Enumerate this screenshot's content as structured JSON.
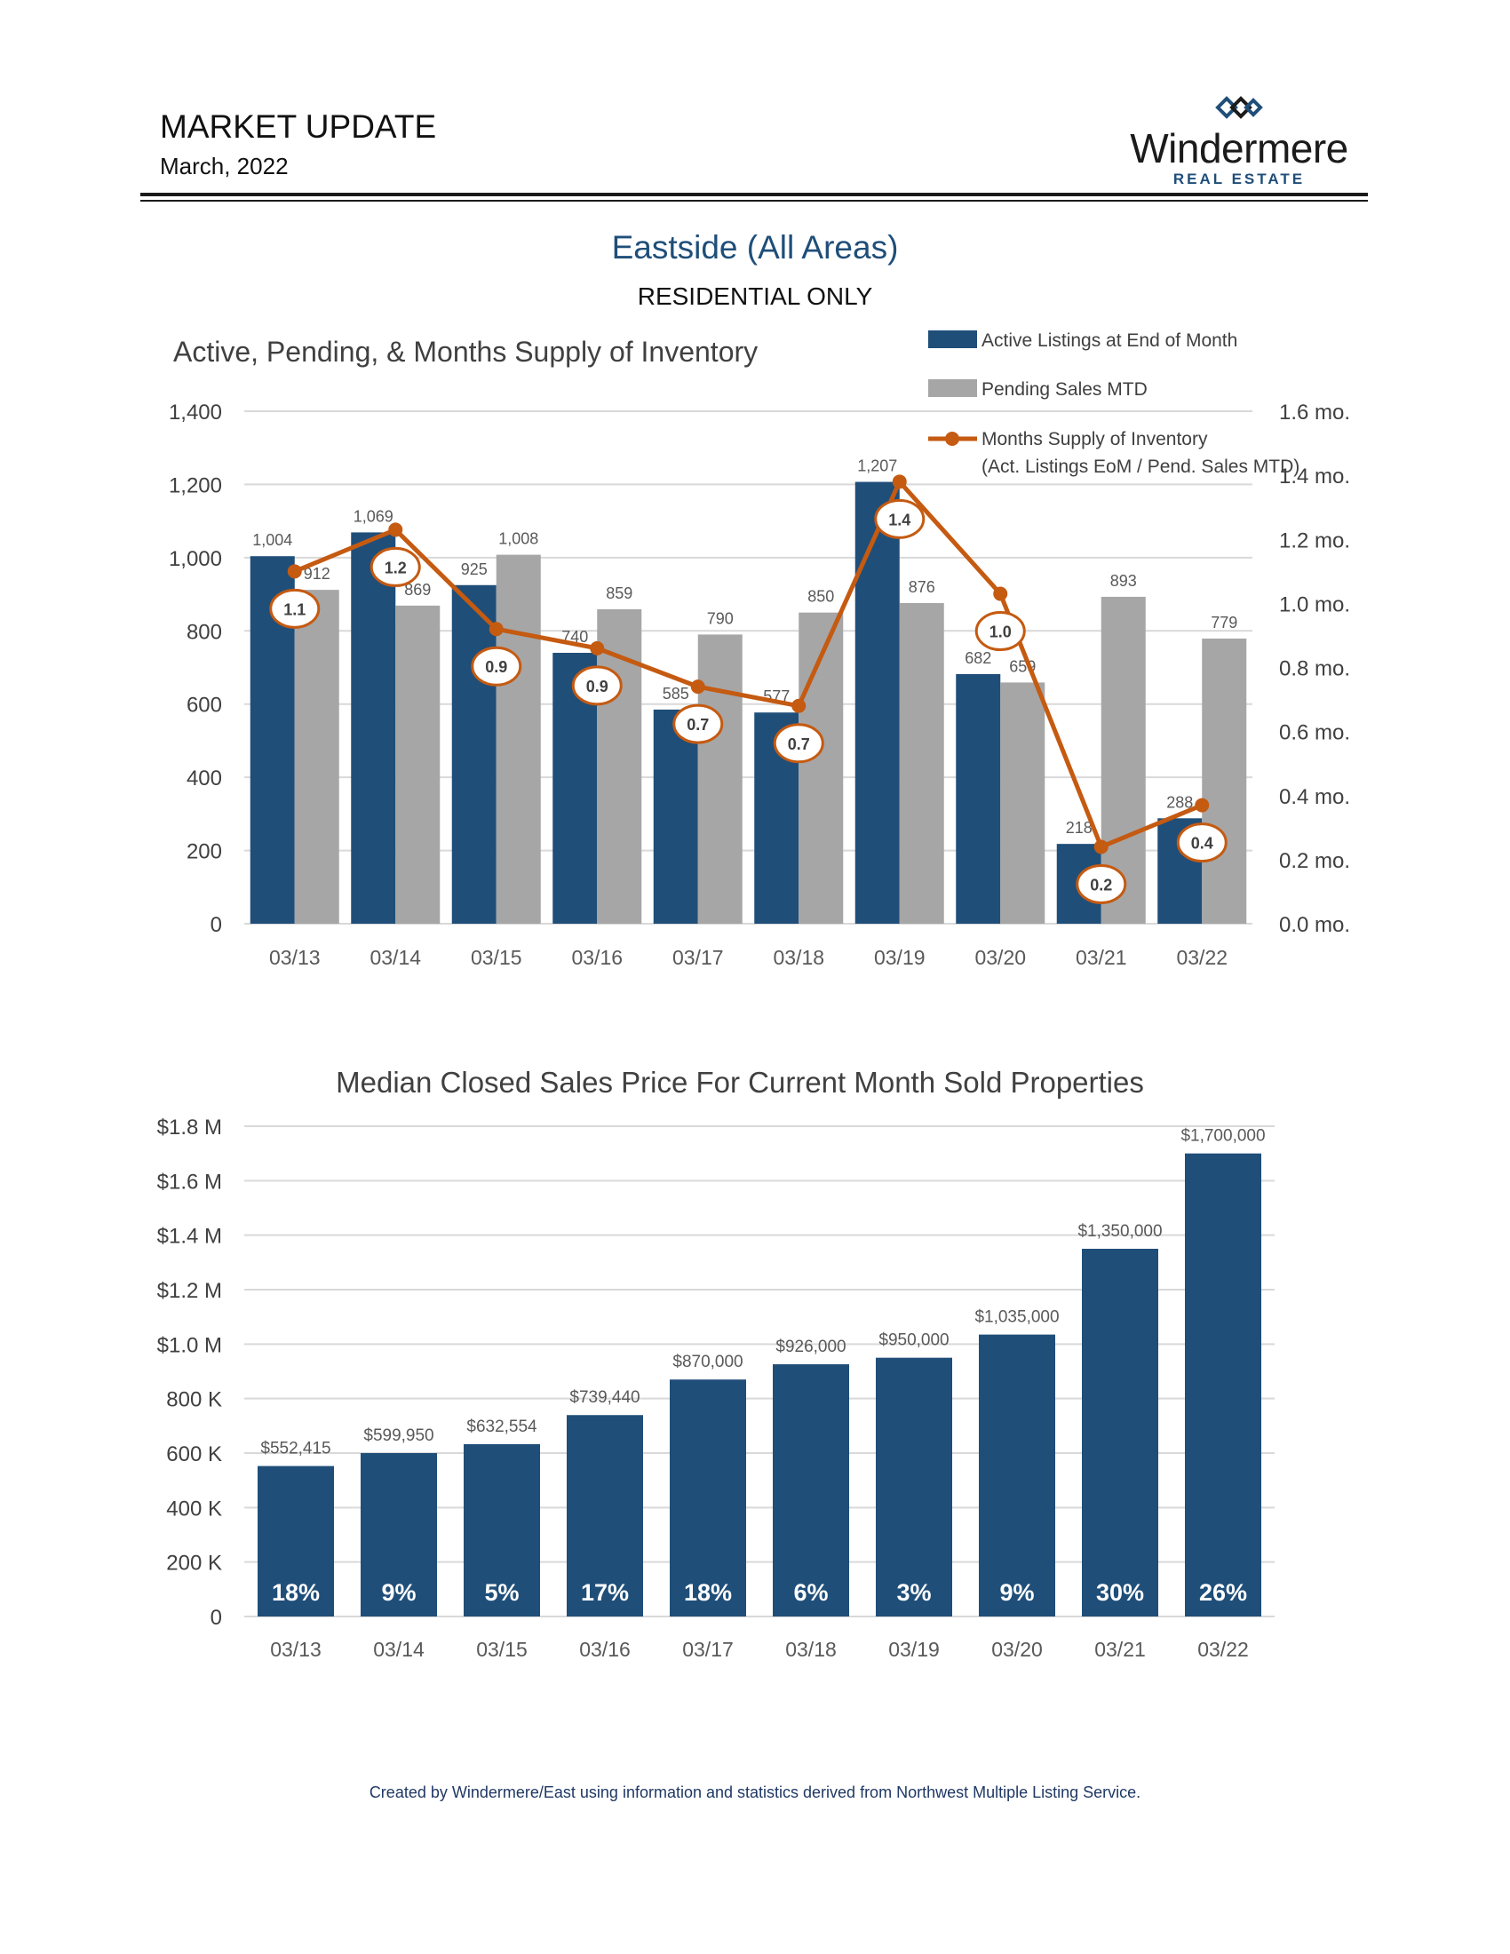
{
  "header": {
    "title": "MARKET UPDATE",
    "date": "March, 2022",
    "logo_name": "Windermere",
    "logo_sub": "REAL ESTATE"
  },
  "region": "Eastside (All Areas)",
  "subtitle": "RESIDENTIAL ONLY",
  "footer": "Created by Windermere/East using information and statistics derived from Northwest Multiple Listing Service.",
  "colors": {
    "navy": "#1f4e79",
    "gray": "#a6a6a6",
    "orange": "#c55a11"
  },
  "chart_data": [
    {
      "type": "bar",
      "title": "Active, Pending, & Months Supply of Inventory",
      "categories": [
        "03/13",
        "03/14",
        "03/15",
        "03/16",
        "03/17",
        "03/18",
        "03/19",
        "03/20",
        "03/21",
        "03/22"
      ],
      "series": [
        {
          "name": "Active Listings at End of Month",
          "type": "bar",
          "values": [
            1004,
            1069,
            925,
            740,
            585,
            577,
            1207,
            682,
            218,
            288
          ]
        },
        {
          "name": "Pending Sales MTD",
          "type": "bar",
          "values": [
            912,
            869,
            1008,
            859,
            790,
            850,
            876,
            659,
            893,
            779
          ]
        },
        {
          "name": "Months Supply of Inventory",
          "type": "line",
          "axis": "right",
          "values": [
            1.1,
            1.2,
            0.9,
            0.9,
            0.7,
            0.7,
            1.4,
            1.0,
            0.2,
            0.4
          ],
          "plotted": [
            1.1,
            1.23,
            0.92,
            0.86,
            0.74,
            0.68,
            1.38,
            1.03,
            0.24,
            0.37
          ]
        }
      ],
      "bar_labels": [
        [
          "1,004",
          "1,069",
          "925",
          "740",
          "585",
          "577",
          "1,207",
          "682",
          "218",
          "288"
        ],
        [
          "912",
          "869",
          "1,008",
          "859",
          "790",
          "850",
          "876",
          "659",
          "893",
          "779"
        ]
      ],
      "line_labels": [
        "1.1",
        "1.2",
        "0.9",
        "0.9",
        "0.7",
        "0.7",
        "1.4",
        "1.0",
        "0.2",
        "0.4"
      ],
      "legend": [
        "Active Listings at End of Month",
        "Pending Sales MTD",
        "Months Supply of Inventory",
        "(Act. Listings EoM / Pend. Sales MTD)"
      ],
      "ylim": [
        0,
        1400
      ],
      "yticks": [
        "0",
        "200",
        "400",
        "600",
        "800",
        "1,000",
        "1,200",
        "1,400"
      ],
      "y2lim": [
        0,
        1.6
      ],
      "y2ticks": [
        "0.0 mo.",
        "0.2 mo.",
        "0.4 mo.",
        "0.6 mo.",
        "0.8 mo.",
        "1.0 mo.",
        "1.2 mo.",
        "1.4 mo.",
        "1.6 mo."
      ]
    },
    {
      "type": "bar",
      "title": "Median Closed Sales Price For Current Month Sold Properties",
      "categories": [
        "03/13",
        "03/14",
        "03/15",
        "03/16",
        "03/17",
        "03/18",
        "03/19",
        "03/20",
        "03/21",
        "03/22"
      ],
      "values": [
        552415,
        599950,
        632554,
        739440,
        870000,
        926000,
        950000,
        1035000,
        1350000,
        1700000
      ],
      "value_labels": [
        "$552,415",
        "$599,950",
        "$632,554",
        "$739,440",
        "$870,000",
        "$926,000",
        "$950,000",
        "$1,035,000",
        "$1,350,000",
        "$1,700,000"
      ],
      "pct_labels": [
        "18%",
        "9%",
        "5%",
        "17%",
        "18%",
        "6%",
        "3%",
        "9%",
        "30%",
        "26%"
      ],
      "ylim": [
        0,
        1800000
      ],
      "yticks": [
        "0",
        "200 K",
        "400 K",
        "600 K",
        "800 K",
        "$1.0 M",
        "$1.2 M",
        "$1.4 M",
        "$1.6 M",
        "$1.8 M"
      ]
    }
  ]
}
